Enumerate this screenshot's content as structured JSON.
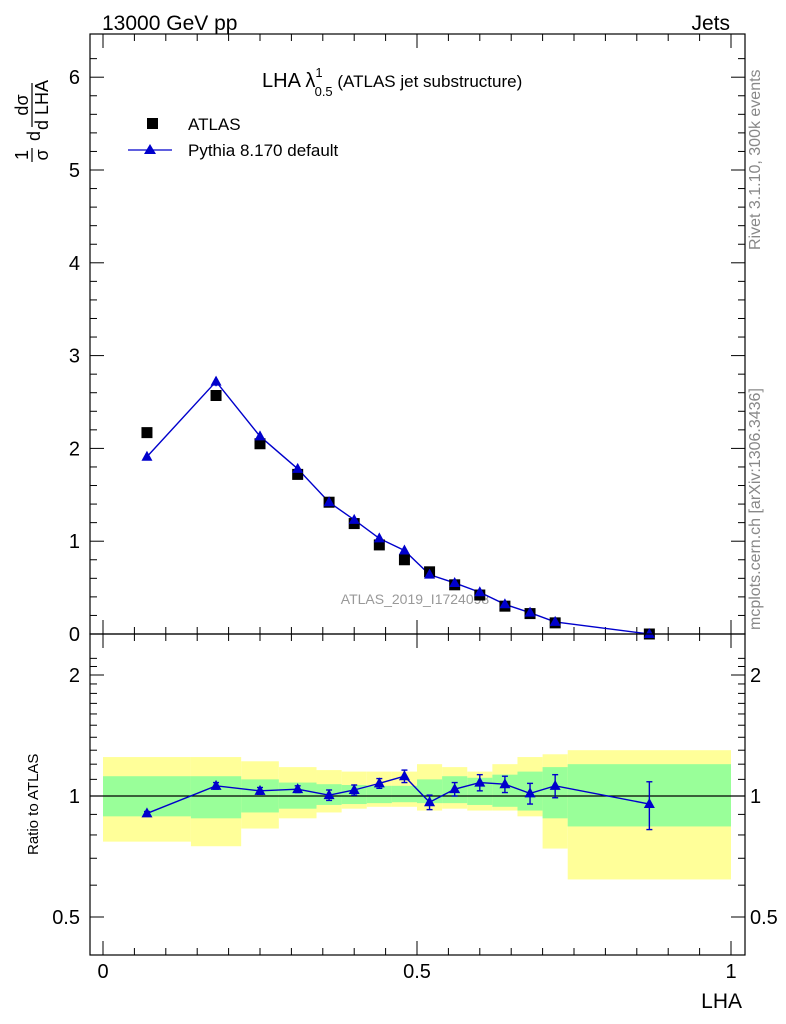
{
  "header": {
    "left": "13000 GeV pp",
    "right": "Jets"
  },
  "side_labels": {
    "top": "Rivet 3.1.10,  300k events",
    "bottom": "mcplots.cern.ch [arXiv:1306.3436]"
  },
  "watermark": "ATLAS_2019_I1724098",
  "title": {
    "main": "LHA λ",
    "sup": "1",
    "sub": "0.5",
    "rest": " (ATLAS jet substructure)"
  },
  "y_label": {
    "frac1_num": "1",
    "frac1_den": "σ",
    "frac2_num": "dσ",
    "frac2_den": "d LHA",
    "prefix": "d"
  },
  "ratio_label": "Ratio to ATLAS",
  "x_label": "LHA",
  "legend": {
    "data": "ATLAS",
    "mc": "Pythia 8.170 default"
  },
  "colors": {
    "data": "#000000",
    "mc": "#0000cc",
    "band_inner": "#99ff99",
    "band_outer": "#ffff99"
  },
  "chart_data": [
    {
      "type": "scatter",
      "panel": "main",
      "xlim": [
        0,
        1
      ],
      "ylim": [
        0,
        6.5
      ],
      "yticks": [
        0,
        1,
        2,
        3,
        4,
        5,
        6
      ],
      "series": [
        {
          "name": "ATLAS",
          "x": [
            0.07,
            0.18,
            0.25,
            0.31,
            0.36,
            0.4,
            0.44,
            0.48,
            0.52,
            0.56,
            0.6,
            0.64,
            0.68,
            0.72,
            0.87
          ],
          "y": [
            2.17,
            2.57,
            2.05,
            1.72,
            1.42,
            1.19,
            0.96,
            0.8,
            0.67,
            0.53,
            0.42,
            0.3,
            0.22,
            0.12,
            0.0
          ]
        },
        {
          "name": "Pythia 8.170 default",
          "x": [
            0.07,
            0.18,
            0.25,
            0.31,
            0.36,
            0.4,
            0.44,
            0.48,
            0.52,
            0.56,
            0.6,
            0.64,
            0.68,
            0.72,
            0.87
          ],
          "y": [
            1.91,
            2.72,
            2.13,
            1.78,
            1.42,
            1.23,
            1.03,
            0.9,
            0.64,
            0.55,
            0.45,
            0.32,
            0.23,
            0.13,
            0.0
          ],
          "yerr": [
            0.02,
            0.05,
            0.05,
            0.05,
            0.04,
            0.04,
            0.04,
            0.03,
            0.03,
            0.03,
            0.03,
            0.02,
            0.02,
            0.01,
            0.01
          ]
        }
      ]
    },
    {
      "type": "line",
      "panel": "ratio",
      "xlim": [
        0,
        1
      ],
      "ylim": [
        0.4,
        2.4
      ],
      "log_y": true,
      "yticks": [
        0.5,
        1,
        2
      ],
      "xticks": [
        0,
        0.5,
        1
      ],
      "xtick_labels": [
        "0",
        "0.5",
        "1"
      ],
      "reference_line": 1,
      "series": [
        {
          "name": "Pythia 8.170 default",
          "x": [
            0.07,
            0.18,
            0.25,
            0.31,
            0.36,
            0.4,
            0.44,
            0.48,
            0.52,
            0.56,
            0.6,
            0.64,
            0.68,
            0.72,
            0.87
          ],
          "y": [
            0.905,
            1.06,
            1.03,
            1.04,
            1.005,
            1.035,
            1.075,
            1.12,
            0.965,
            1.04,
            1.08,
            1.07,
            1.015,
            1.06,
            0.955
          ],
          "yerr": [
            0.01,
            0.02,
            0.02,
            0.02,
            0.03,
            0.03,
            0.03,
            0.04,
            0.04,
            0.04,
            0.05,
            0.05,
            0.06,
            0.07,
            0.13
          ]
        }
      ],
      "bands": {
        "edges": [
          0.0,
          0.14,
          0.22,
          0.28,
          0.34,
          0.38,
          0.42,
          0.46,
          0.5,
          0.54,
          0.58,
          0.62,
          0.66,
          0.7,
          0.74,
          1.0
        ],
        "inner_low": [
          0.89,
          0.88,
          0.91,
          0.93,
          0.95,
          0.955,
          0.96,
          0.965,
          0.96,
          0.96,
          0.95,
          0.94,
          0.92,
          0.88,
          0.84
        ],
        "inner_high": [
          1.12,
          1.12,
          1.1,
          1.08,
          1.07,
          1.065,
          1.06,
          1.06,
          1.1,
          1.12,
          1.11,
          1.13,
          1.15,
          1.18,
          1.2
        ],
        "outer_low": [
          0.77,
          0.75,
          0.83,
          0.88,
          0.91,
          0.93,
          0.94,
          0.94,
          0.92,
          0.93,
          0.92,
          0.92,
          0.89,
          0.74,
          0.62
        ],
        "outer_high": [
          1.25,
          1.25,
          1.22,
          1.18,
          1.16,
          1.15,
          1.15,
          1.15,
          1.2,
          1.18,
          1.15,
          1.2,
          1.25,
          1.27,
          1.3
        ]
      }
    }
  ]
}
